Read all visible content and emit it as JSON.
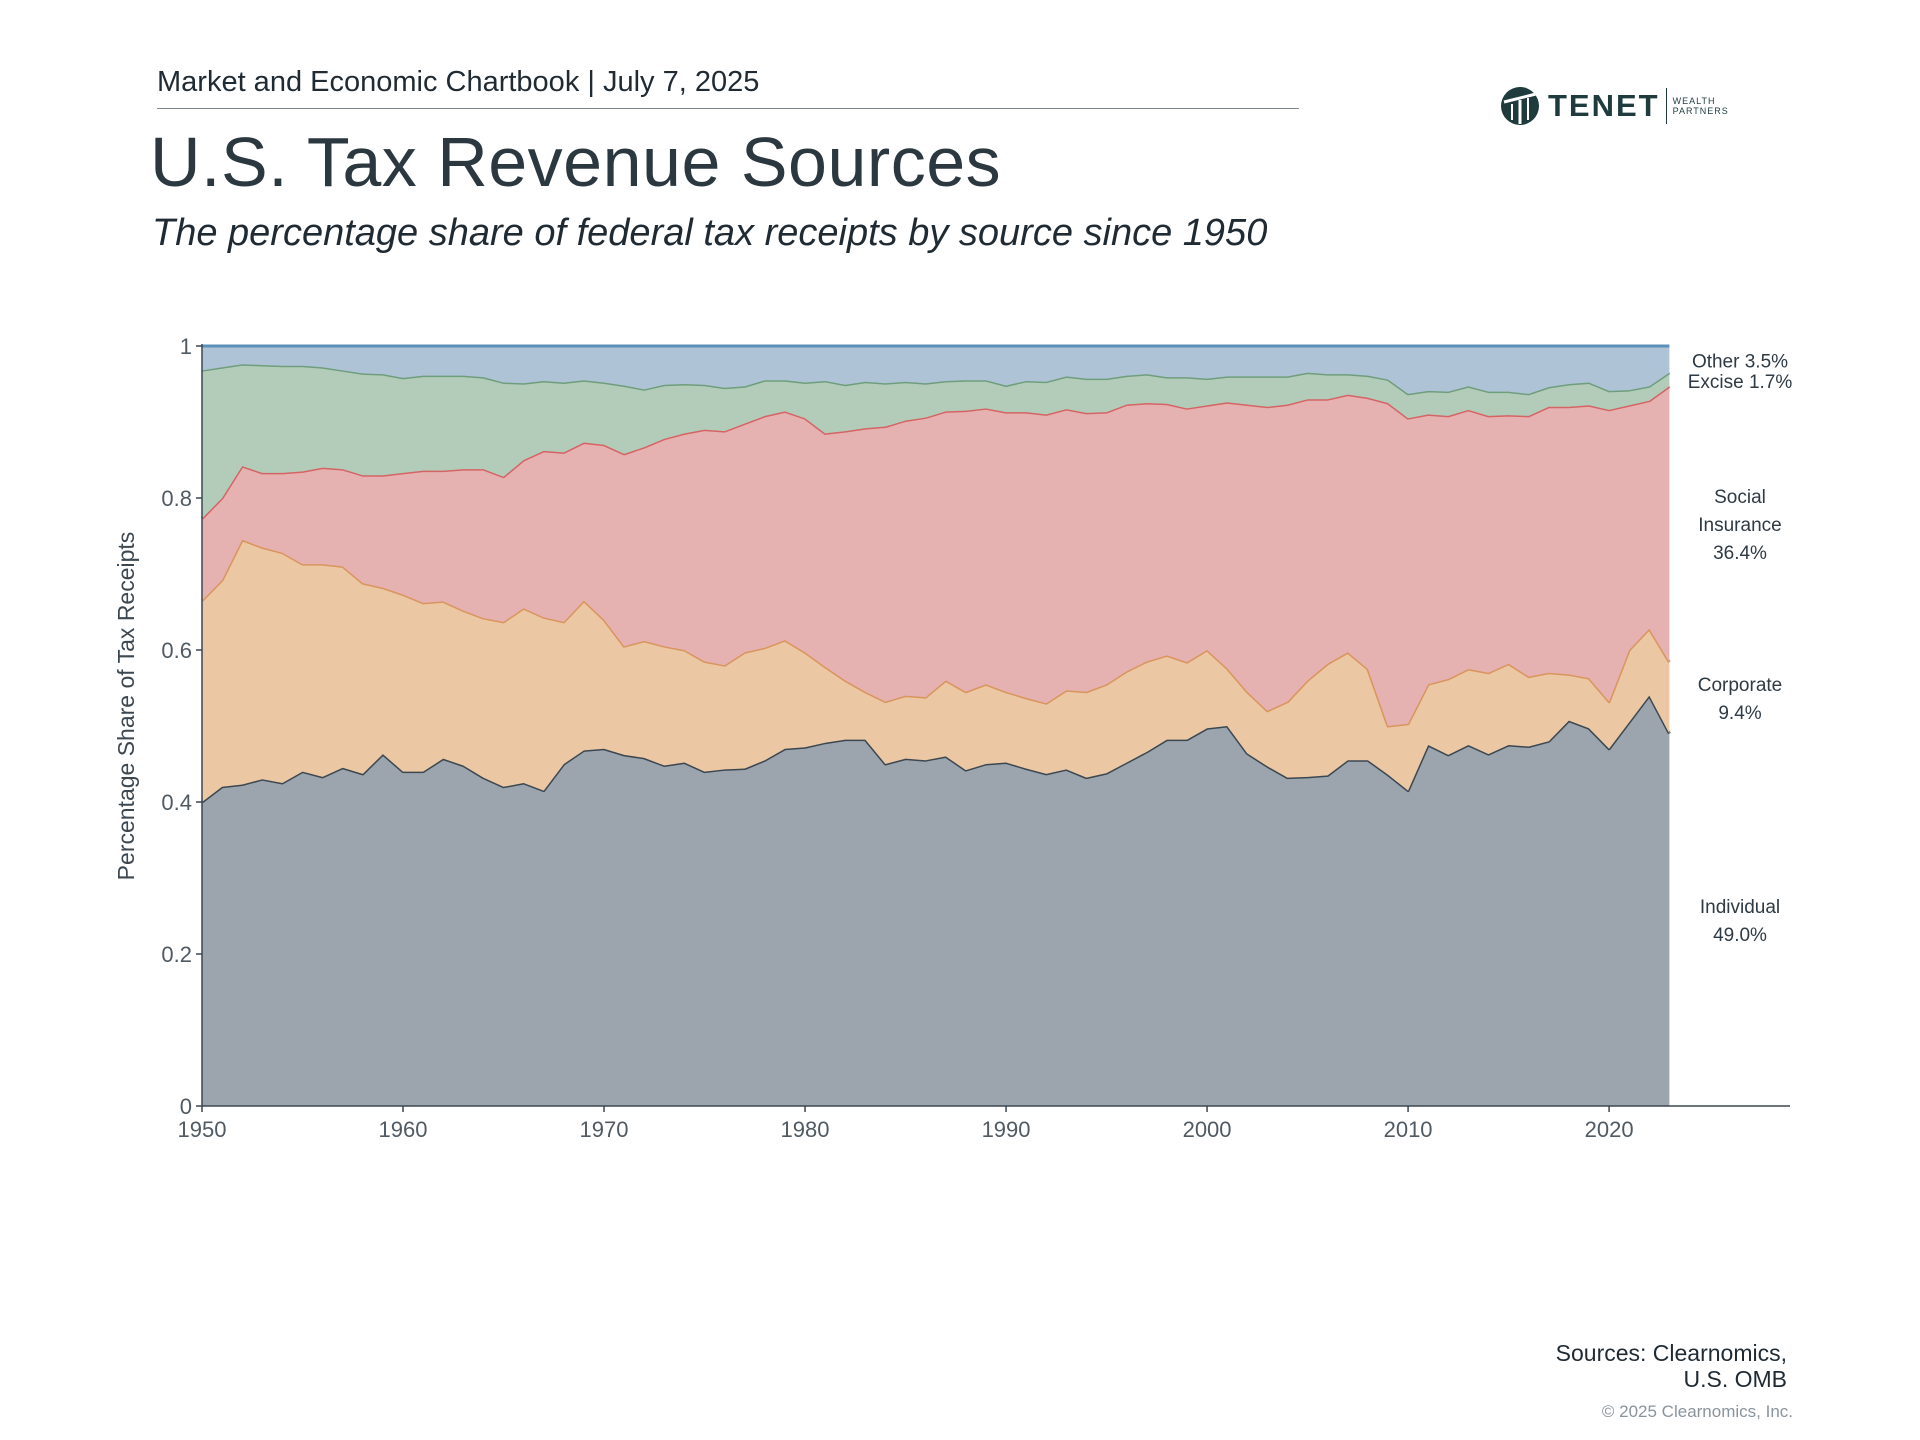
{
  "header": {
    "chartbook": "Market and Economic Chartbook | July 7, 2025",
    "title": "U.S. Tax Revenue Sources",
    "subtitle": "The percentage share of federal tax receipts by source since 1950"
  },
  "logo": {
    "word": "TENET",
    "sub1": "WEALTH",
    "sub2": "PARTNERS"
  },
  "footer": {
    "sources1": "Sources: Clearnomics,",
    "sources2": "U.S. OMB",
    "copyright": "© 2025 Clearnomics, Inc."
  },
  "chart_data": {
    "type": "area",
    "stacked": true,
    "ylabel": "Percentage Share of Tax Receipts",
    "xlim": [
      1950,
      2029
    ],
    "ylim": [
      0,
      1
    ],
    "x_ticks": [
      1950,
      1960,
      1970,
      1980,
      1990,
      2000,
      2010,
      2020
    ],
    "y_ticks": [
      0,
      0.2,
      0.4,
      0.6,
      0.8,
      1
    ],
    "y_tick_labels": [
      "0",
      "0.2",
      "0.4",
      "0.6",
      "0.8",
      "1"
    ],
    "grid": false,
    "x": [
      1950,
      1951,
      1952,
      1953,
      1954,
      1955,
      1956,
      1957,
      1958,
      1959,
      1960,
      1961,
      1962,
      1963,
      1964,
      1965,
      1966,
      1967,
      1968,
      1969,
      1970,
      1971,
      1972,
      1973,
      1974,
      1975,
      1976,
      1977,
      1978,
      1979,
      1980,
      1981,
      1982,
      1983,
      1984,
      1985,
      1986,
      1987,
      1988,
      1989,
      1990,
      1991,
      1992,
      1993,
      1994,
      1995,
      1996,
      1997,
      1998,
      1999,
      2000,
      2001,
      2002,
      2003,
      2004,
      2005,
      2006,
      2007,
      2008,
      2009,
      2010,
      2011,
      2012,
      2013,
      2014,
      2015,
      2016,
      2017,
      2018,
      2019,
      2020,
      2021,
      2022,
      2023
    ],
    "series": [
      {
        "name": "Individual",
        "label_lines": [
          "Individual",
          "49.0%"
        ],
        "color": "#9ca5ae",
        "line": "#3b4751",
        "cumulative": [
          0.4,
          0.42,
          0.423,
          0.43,
          0.425,
          0.44,
          0.433,
          0.445,
          0.437,
          0.463,
          0.44,
          0.44,
          0.457,
          0.448,
          0.432,
          0.42,
          0.425,
          0.415,
          0.45,
          0.468,
          0.47,
          0.462,
          0.458,
          0.448,
          0.452,
          0.44,
          0.443,
          0.444,
          0.455,
          0.47,
          0.472,
          0.478,
          0.482,
          0.482,
          0.45,
          0.457,
          0.455,
          0.46,
          0.442,
          0.45,
          0.452,
          0.444,
          0.437,
          0.443,
          0.432,
          0.438,
          0.452,
          0.466,
          0.482,
          0.482,
          0.497,
          0.5,
          0.464,
          0.447,
          0.432,
          0.433,
          0.435,
          0.455,
          0.455,
          0.436,
          0.415,
          0.475,
          0.462,
          0.475,
          0.463,
          0.475,
          0.473,
          0.48,
          0.507,
          0.497,
          0.47,
          0.505,
          0.54,
          0.49
        ]
      },
      {
        "name": "Corporate",
        "label_lines": [
          "Corporate",
          "9.4%"
        ],
        "color": "#ebc7a4",
        "line": "#d9955d",
        "cumulative": [
          0.665,
          0.692,
          0.745,
          0.735,
          0.728,
          0.713,
          0.713,
          0.71,
          0.688,
          0.682,
          0.673,
          0.662,
          0.664,
          0.652,
          0.642,
          0.637,
          0.655,
          0.643,
          0.637,
          0.665,
          0.64,
          0.605,
          0.612,
          0.605,
          0.6,
          0.585,
          0.58,
          0.597,
          0.603,
          0.613,
          0.597,
          0.578,
          0.56,
          0.545,
          0.532,
          0.54,
          0.538,
          0.56,
          0.545,
          0.555,
          0.545,
          0.537,
          0.53,
          0.547,
          0.545,
          0.555,
          0.572,
          0.585,
          0.593,
          0.584,
          0.6,
          0.576,
          0.545,
          0.52,
          0.532,
          0.56,
          0.582,
          0.597,
          0.575,
          0.5,
          0.503,
          0.555,
          0.562,
          0.575,
          0.57,
          0.582,
          0.565,
          0.57,
          0.568,
          0.563,
          0.532,
          0.6,
          0.628,
          0.584
        ]
      },
      {
        "name": "Social Insurance",
        "label_lines": [
          "Social",
          "Insurance",
          "36.4%"
        ],
        "color": "#e6b1b1",
        "line": "#d56464",
        "cumulative": [
          0.773,
          0.8,
          0.842,
          0.833,
          0.833,
          0.835,
          0.84,
          0.838,
          0.83,
          0.83,
          0.833,
          0.836,
          0.836,
          0.838,
          0.838,
          0.828,
          0.85,
          0.862,
          0.86,
          0.873,
          0.87,
          0.858,
          0.867,
          0.878,
          0.885,
          0.89,
          0.888,
          0.898,
          0.908,
          0.914,
          0.905,
          0.885,
          0.888,
          0.892,
          0.894,
          0.902,
          0.906,
          0.914,
          0.915,
          0.918,
          0.913,
          0.913,
          0.91,
          0.917,
          0.912,
          0.913,
          0.923,
          0.925,
          0.924,
          0.918,
          0.922,
          0.926,
          0.923,
          0.92,
          0.923,
          0.93,
          0.93,
          0.936,
          0.932,
          0.925,
          0.905,
          0.91,
          0.908,
          0.916,
          0.908,
          0.909,
          0.908,
          0.92,
          0.92,
          0.922,
          0.916,
          0.922,
          0.928,
          0.947
        ]
      },
      {
        "name": "Excise",
        "label_lines": [
          "Excise  1.7%"
        ],
        "color": "#b3ccba",
        "line": "#6f9e7c",
        "cumulative": [
          0.968,
          0.972,
          0.976,
          0.975,
          0.974,
          0.974,
          0.972,
          0.968,
          0.964,
          0.963,
          0.958,
          0.961,
          0.961,
          0.961,
          0.959,
          0.952,
          0.951,
          0.954,
          0.952,
          0.955,
          0.952,
          0.948,
          0.943,
          0.949,
          0.95,
          0.949,
          0.945,
          0.947,
          0.955,
          0.955,
          0.952,
          0.954,
          0.949,
          0.953,
          0.951,
          0.953,
          0.951,
          0.954,
          0.955,
          0.955,
          0.948,
          0.954,
          0.953,
          0.96,
          0.957,
          0.957,
          0.961,
          0.963,
          0.959,
          0.959,
          0.957,
          0.96,
          0.96,
          0.96,
          0.96,
          0.965,
          0.963,
          0.963,
          0.961,
          0.956,
          0.937,
          0.941,
          0.94,
          0.947,
          0.94,
          0.94,
          0.937,
          0.946,
          0.95,
          0.952,
          0.941,
          0.942,
          0.947,
          0.965
        ]
      },
      {
        "name": "Other",
        "label_lines": [
          "Other  3.5%"
        ],
        "color": "#afc3d6",
        "line": "#5b8fba",
        "cumulative": [
          1,
          1,
          1,
          1,
          1,
          1,
          1,
          1,
          1,
          1,
          1,
          1,
          1,
          1,
          1,
          1,
          1,
          1,
          1,
          1,
          1,
          1,
          1,
          1,
          1,
          1,
          1,
          1,
          1,
          1,
          1,
          1,
          1,
          1,
          1,
          1,
          1,
          1,
          1,
          1,
          1,
          1,
          1,
          1,
          1,
          1,
          1,
          1,
          1,
          1,
          1,
          1,
          1,
          1,
          1,
          1,
          1,
          1,
          1,
          1,
          1,
          1,
          1,
          1,
          1,
          1,
          1,
          1,
          1,
          1,
          1,
          1,
          1,
          1
        ]
      }
    ]
  }
}
